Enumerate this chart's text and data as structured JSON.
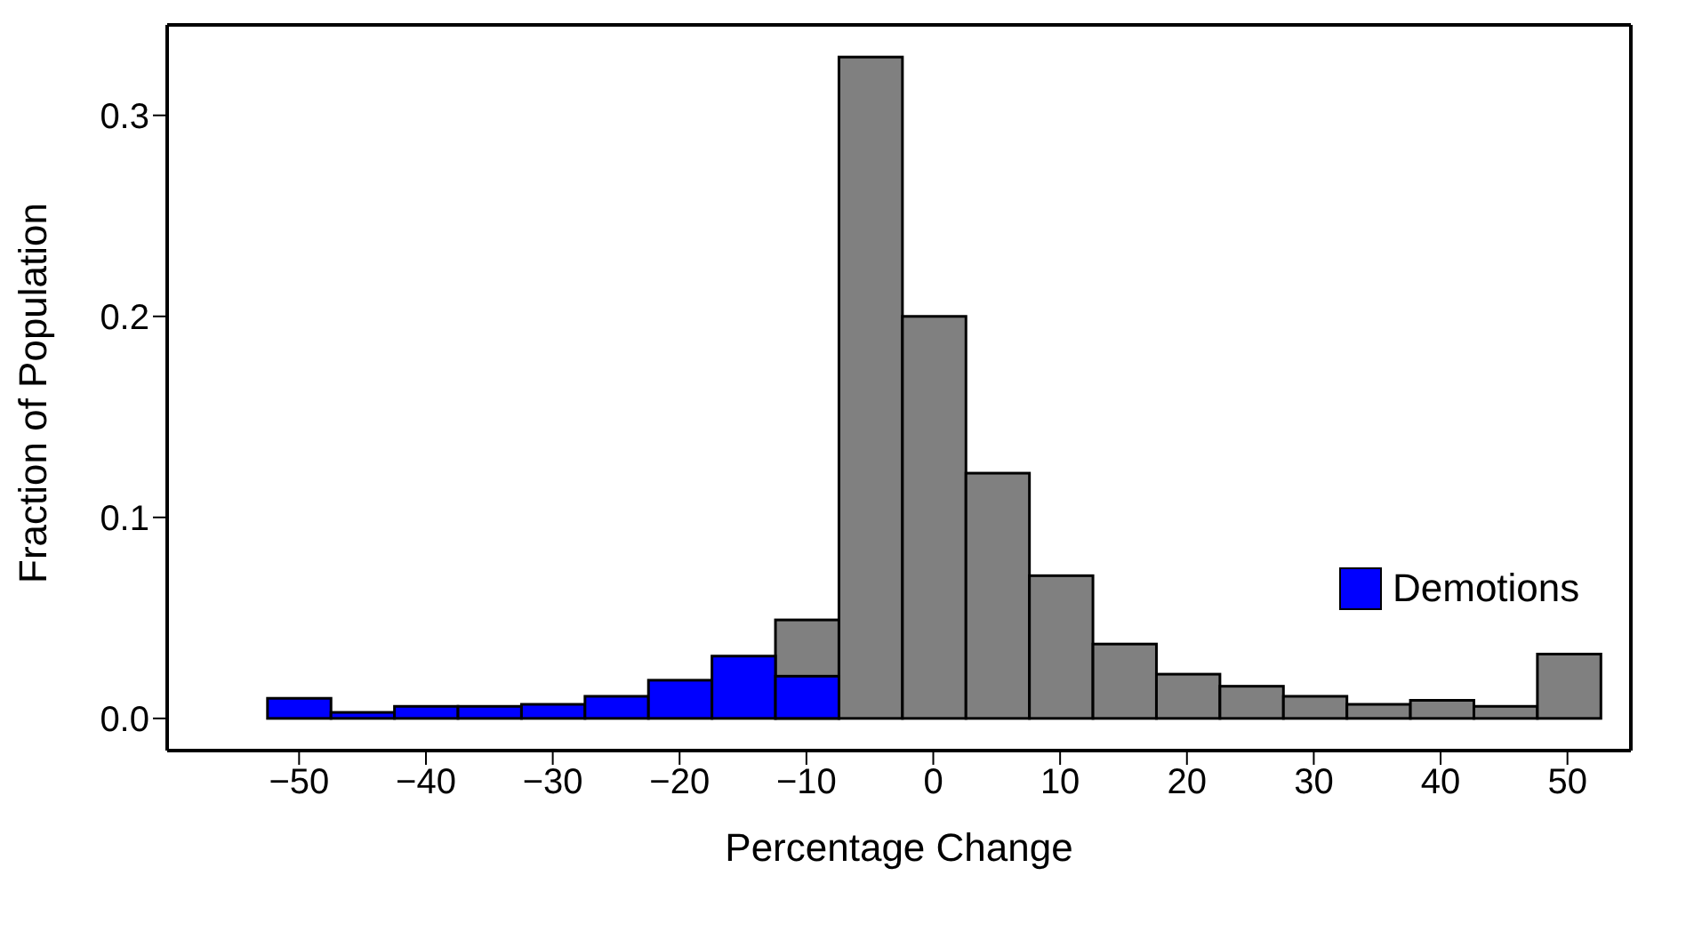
{
  "chart_data": {
    "type": "histogram",
    "xlabel": "Percentage Change",
    "ylabel": "Fraction of Population",
    "bins": [
      -52.5,
      -47.5,
      -42.5,
      -37.5,
      -32.5,
      -27.5,
      -22.5,
      -17.5,
      -12.5,
      -7.5,
      -2.5,
      2.5,
      7.5,
      12.5,
      17.5,
      22.5,
      27.5,
      32.5,
      37.5,
      42.5,
      47.5,
      52.5
    ],
    "series": [
      {
        "color": "#808080",
        "values": [
          null,
          null,
          null,
          null,
          null,
          null,
          null,
          null,
          0.049,
          0.329,
          0.2,
          0.122,
          0.071,
          0.037,
          0.022,
          0.016,
          0.011,
          0.007,
          0.009,
          0.006,
          0.032
        ]
      },
      {
        "name": "Demotions",
        "color": "#0000ff",
        "values": [
          0.01,
          0.003,
          0.006,
          0.006,
          0.007,
          0.011,
          0.019,
          0.031,
          0.021,
          null,
          null,
          null,
          null,
          null,
          null,
          null,
          null,
          null,
          null,
          null,
          null
        ]
      }
    ],
    "xlim": [
      -60.4,
      55
    ],
    "xticks": [
      -50,
      -40,
      -30,
      -20,
      -10,
      0,
      10,
      20,
      30,
      40,
      50
    ],
    "ylim": [
      -0.016,
      0.345
    ],
    "yticks": [
      {
        "value": 0,
        "label": "0.0"
      },
      {
        "value": 0.1,
        "label": "0.1"
      },
      {
        "value": 0.2,
        "label": "0.2"
      },
      {
        "value": 0.3,
        "label": "0.3"
      }
    ],
    "grid": false,
    "legend": "right"
  }
}
